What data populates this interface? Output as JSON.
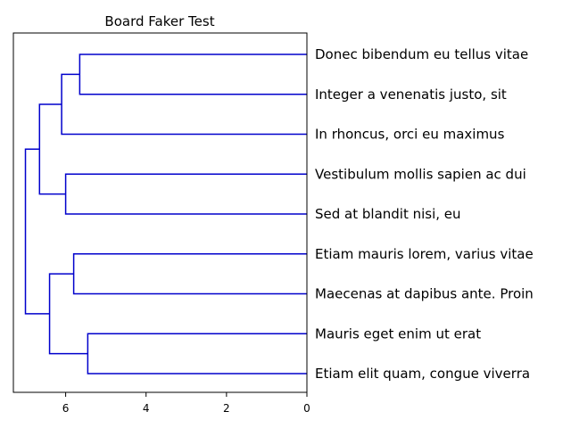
{
  "chart_data": {
    "type": "dendrogram",
    "title": "Board Faker Test",
    "orientation": "left",
    "line_color": "#0000cc",
    "xlim": [
      7.3,
      0
    ],
    "xticks": [
      6,
      4,
      2,
      0
    ],
    "leaves": [
      "Donec bibendum eu tellus vitae",
      "Integer a venenatis justo, sit",
      "In rhoncus, orci eu maximus",
      "Vestibulum mollis sapien ac dui",
      "Sed at blandit nisi, eu",
      "Etiam mauris lorem, varius vitae",
      "Maecenas at dapibus ante. Proin",
      "Mauris eget enim ut erat",
      "Etiam elit quam, congue viverra"
    ],
    "merges": [
      {
        "a": 0,
        "b": 1,
        "height": 5.65
      },
      {
        "a": 3,
        "b": 4,
        "height": 6.0
      },
      {
        "a": 5,
        "b": 6,
        "height": 5.8
      },
      {
        "a": 7,
        "b": 8,
        "height": 5.45
      },
      {
        "a": 9,
        "b": 2,
        "height": 6.1
      },
      {
        "a": 13,
        "b": 10,
        "height": 6.65
      },
      {
        "a": 11,
        "b": 12,
        "height": 6.4
      },
      {
        "a": 14,
        "b": 15,
        "height": 7.0
      }
    ]
  }
}
